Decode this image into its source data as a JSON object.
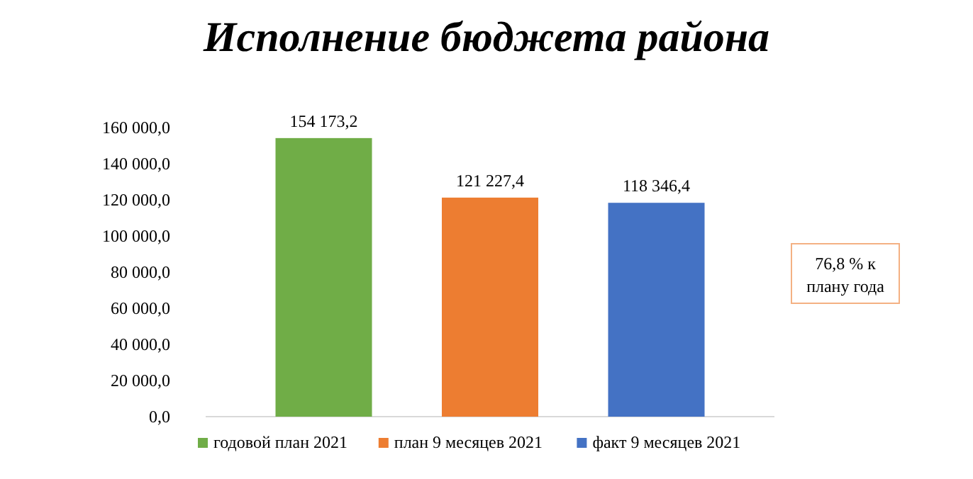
{
  "chart_data": {
    "type": "bar",
    "title": "Исполнение бюджета района",
    "categories": [
      null
    ],
    "series": [
      {
        "name": "годовой план 2021",
        "color": "#70ad47",
        "values": [
          154173.2
        ],
        "value_labels": [
          "154 173,2"
        ]
      },
      {
        "name": "план 9 месяцев 2021",
        "color": "#ed7d31",
        "values": [
          121227.4
        ],
        "value_labels": [
          "121 227,4"
        ]
      },
      {
        "name": "факт 9 месяцев 2021",
        "color": "#4472c4",
        "values": [
          118346.4
        ],
        "value_labels": [
          "118 346,4"
        ]
      }
    ],
    "ylim": [
      0,
      160000
    ],
    "yticks": [
      {
        "value": 0,
        "label": "0,0"
      },
      {
        "value": 20000,
        "label": "20 000,0"
      },
      {
        "value": 40000,
        "label": "40 000,0"
      },
      {
        "value": 60000,
        "label": "60 000,0"
      },
      {
        "value": 80000,
        "label": "80 000,0"
      },
      {
        "value": 100000,
        "label": "100 000,0"
      },
      {
        "value": 120000,
        "label": "120 000,0"
      },
      {
        "value": 140000,
        "label": "140 000,0"
      },
      {
        "value": 160000,
        "label": "160 000,0"
      }
    ],
    "grid": false,
    "legend": "bottom",
    "annotations": [
      "76,8 % к плану года"
    ]
  }
}
